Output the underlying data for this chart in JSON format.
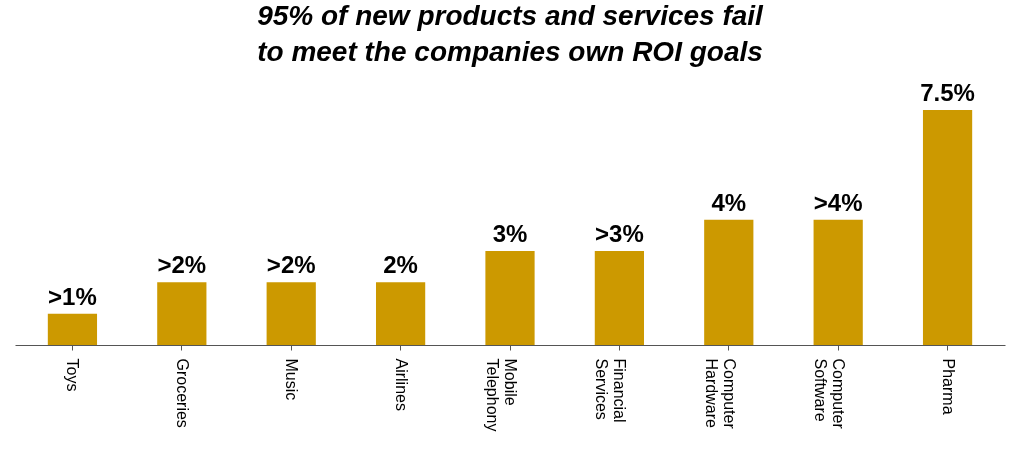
{
  "chart_data": {
    "type": "bar",
    "title": "95% of new products and services fail\nto meet the companies own ROI goals",
    "categories": [
      "Toys",
      "Groceries",
      "Music",
      "Airlines",
      "Mobile Telephony",
      "Financial Services",
      "Computer Hardware",
      "Computer Software",
      "Pharma"
    ],
    "values": [
      1,
      2,
      2,
      2,
      3,
      3,
      4,
      4,
      7.5
    ],
    "value_labels": [
      ">1%",
      ">2%",
      ">2%",
      "2%",
      "3%",
      ">3%",
      "4%",
      ">4%",
      "7.5%"
    ],
    "color": "#cc9900"
  }
}
